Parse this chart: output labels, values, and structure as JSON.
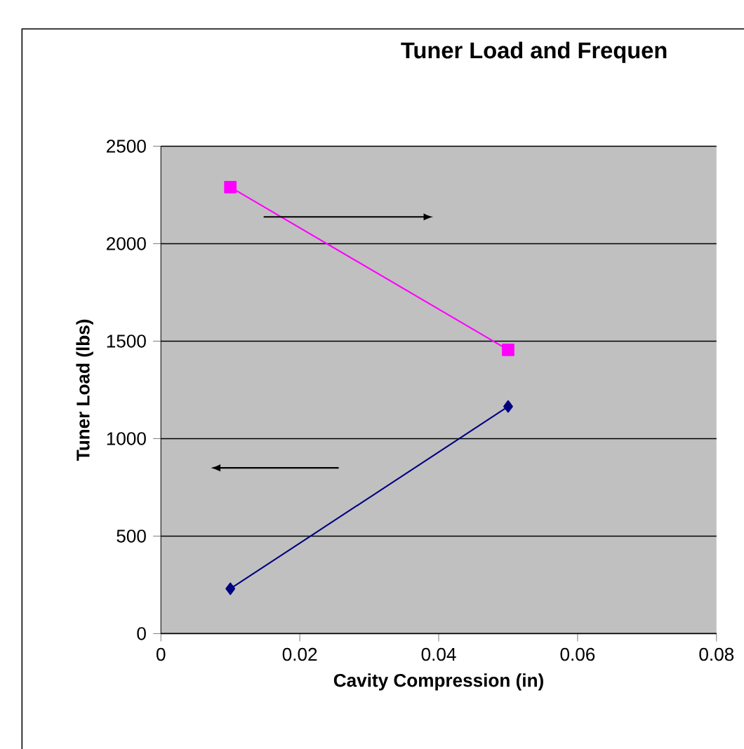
{
  "chart_data": {
    "type": "line",
    "title": "Tuner Load and Frequen",
    "xlabel": "Cavity Compression (in)",
    "ylabel": "Tuner Load (lbs)",
    "x": [
      0.01,
      0.05
    ],
    "series": [
      {
        "color": "#ff00ff",
        "marker": "square",
        "values": [
          2290,
          1455
        ]
      },
      {
        "color": "#000080",
        "marker": "diamond",
        "values": [
          230,
          1165
        ]
      }
    ],
    "xlim": [
      0,
      0.08
    ],
    "xticks": [
      0,
      0.02,
      0.04,
      0.06,
      0.08
    ],
    "ylim": [
      0,
      2500
    ],
    "yticks": [
      0,
      500,
      1000,
      1500,
      2000,
      2500
    ],
    "grid": "y"
  }
}
